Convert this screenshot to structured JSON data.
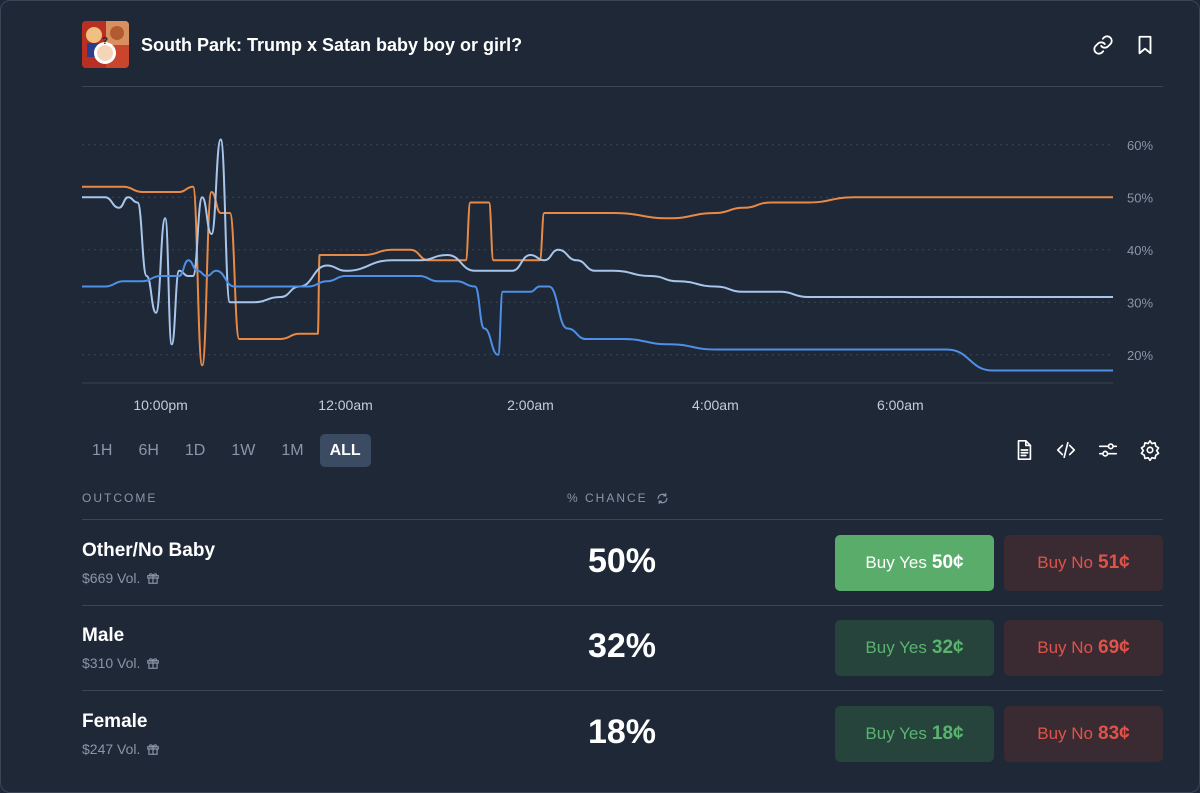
{
  "market": {
    "title": "South Park: Trump x Satan baby boy or girl?"
  },
  "header_icons": [
    "link-icon",
    "bookmark-icon"
  ],
  "chart_data": {
    "type": "line",
    "x_ticks": [
      "10:00pm",
      "12:00am",
      "2:00am",
      "4:00am",
      "6:00am"
    ],
    "y_ticks": [
      "20%",
      "30%",
      "40%",
      "50%",
      "60%"
    ],
    "ylim": [
      15,
      63
    ],
    "x_range_hours": [
      21.15,
      32.3
    ],
    "series": [
      {
        "name": "Other/No Baby",
        "color": "#e88a46",
        "x": [
          21.15,
          21.3,
          21.6,
          21.8,
          22.0,
          22.2,
          22.35,
          22.45,
          22.55,
          22.65,
          22.75,
          22.85,
          23.0,
          23.3,
          23.5,
          23.7,
          23.72,
          24.0,
          24.2,
          24.5,
          24.7,
          24.9,
          25.0,
          25.3,
          25.35,
          25.55,
          25.6,
          25.85,
          25.95,
          26.1,
          26.15,
          26.5,
          26.9,
          27.5,
          28.0,
          28.3,
          28.6,
          29.0,
          29.5,
          30.0,
          31.0,
          32.3
        ],
        "y": [
          52,
          52,
          52,
          51,
          51,
          51,
          52,
          18,
          51,
          47,
          47,
          23,
          23,
          23,
          24,
          24,
          39,
          39,
          39,
          40,
          40,
          38,
          38,
          38,
          49,
          49,
          38,
          38,
          38,
          38,
          47,
          47,
          47,
          46,
          47,
          48,
          49,
          49,
          50,
          50,
          50,
          50
        ]
      },
      {
        "name": "Male",
        "color": "#a8c6ec",
        "x": [
          21.15,
          21.4,
          21.55,
          21.65,
          21.75,
          21.85,
          21.95,
          22.05,
          22.12,
          22.2,
          22.3,
          22.35,
          22.45,
          22.55,
          22.65,
          22.75,
          23.0,
          23.3,
          23.5,
          23.8,
          24.0,
          24.5,
          24.8,
          25.1,
          25.4,
          25.8,
          26.0,
          26.15,
          26.3,
          26.5,
          26.7,
          26.9,
          27.3,
          27.6,
          28.0,
          28.3,
          28.7,
          29.0,
          30.0,
          32.3
        ],
        "y": [
          50,
          50,
          48,
          50,
          49,
          35,
          28,
          46,
          22,
          36,
          35,
          35,
          50,
          43,
          61,
          30,
          30,
          31,
          33,
          37,
          36,
          38,
          38,
          39,
          36,
          36,
          39,
          38,
          40,
          38,
          36,
          36,
          35,
          34,
          33,
          32,
          32,
          31,
          31,
          31
        ]
      },
      {
        "name": "Female",
        "color": "#4f8fe8",
        "x": [
          21.15,
          21.4,
          21.6,
          21.8,
          22.0,
          22.2,
          22.3,
          22.4,
          22.5,
          22.6,
          22.8,
          23.1,
          23.4,
          23.6,
          23.8,
          24.0,
          24.3,
          24.8,
          25.0,
          25.2,
          25.4,
          25.5,
          25.65,
          25.7,
          26.0,
          26.1,
          26.2,
          26.4,
          26.6,
          27.0,
          27.5,
          28.0,
          28.5,
          29.0,
          29.5,
          30.0,
          30.5,
          31.0,
          31.5,
          31.7,
          32.1,
          32.3
        ],
        "y": [
          33,
          33,
          34,
          34,
          35,
          35,
          38,
          36,
          35,
          36,
          33,
          33,
          33,
          33,
          34,
          35,
          35,
          35,
          34,
          34,
          33,
          25,
          20,
          32,
          32,
          33,
          33,
          25,
          23,
          23,
          22,
          21,
          21,
          21,
          21,
          21,
          21,
          17,
          17,
          17,
          17,
          17
        ]
      }
    ]
  },
  "range_buttons": [
    "1H",
    "6H",
    "1D",
    "1W",
    "1M",
    "ALL"
  ],
  "toolbar_icons": [
    "document-icon",
    "code-icon",
    "sliders-icon",
    "gear-icon"
  ],
  "table": {
    "col_outcome": "OUTCOME",
    "col_chance": "% CHANCE",
    "rows": [
      {
        "name": "Other/No Baby",
        "vol": "$669 Vol.",
        "pct": "50%",
        "yes_label": "Buy Yes",
        "yes_price": "50¢",
        "no_label": "Buy No",
        "no_price": "51¢"
      },
      {
        "name": "Male",
        "vol": "$310 Vol.",
        "pct": "32%",
        "yes_label": "Buy Yes",
        "yes_price": "32¢",
        "no_label": "Buy No",
        "no_price": "69¢"
      },
      {
        "name": "Female",
        "vol": "$247 Vol.",
        "pct": "18%",
        "yes_label": "Buy Yes",
        "yes_price": "18¢",
        "no_label": "Buy No",
        "no_price": "83¢"
      }
    ]
  },
  "colors": {
    "background": "#1e2836",
    "yes": "#5aac6b",
    "no": "#e0534a",
    "orange": "#e88a46",
    "blue": "#4f8fe8",
    "light_blue": "#a8c6ec"
  }
}
